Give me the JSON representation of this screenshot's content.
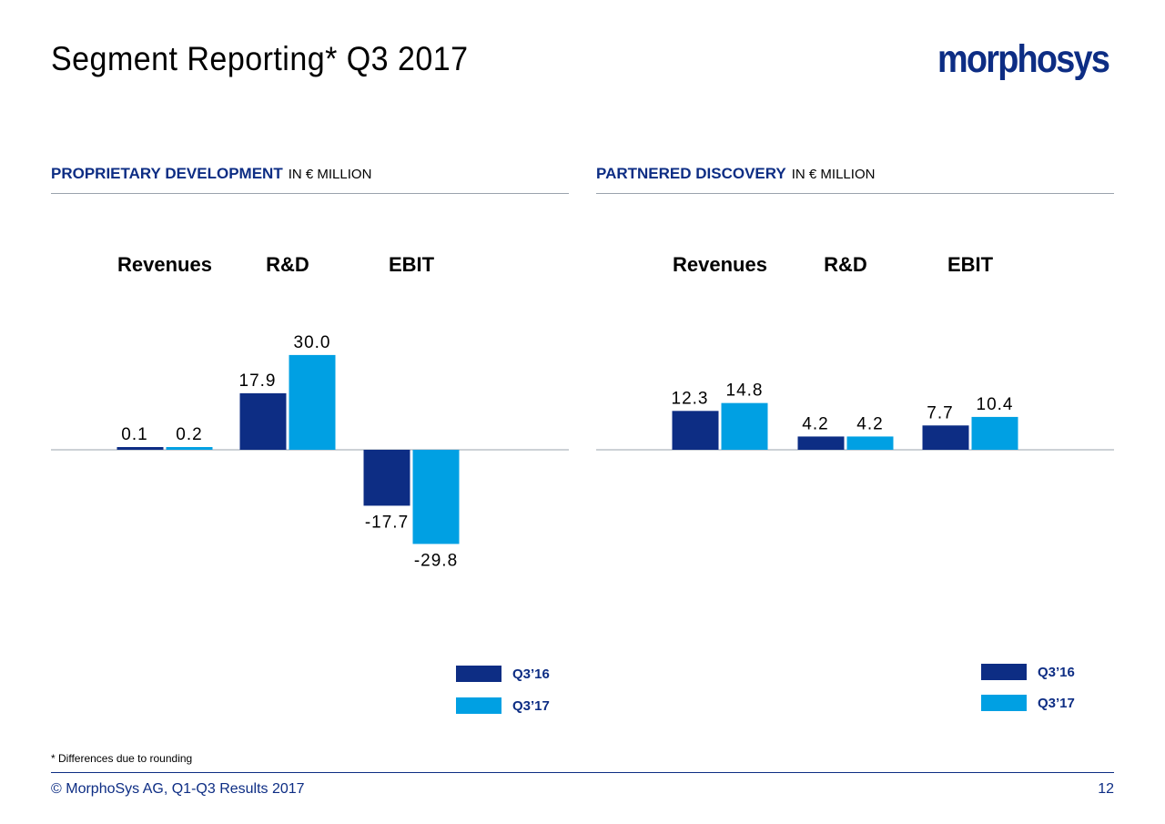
{
  "title": "Segment Reporting* Q3 2017",
  "logo_text": "morphosys",
  "colors": {
    "q3_16": "#0d2d84",
    "q3_17": "#00a0e3",
    "heading_blue": "#0d2d84"
  },
  "sections": [
    {
      "title": "PROPRIETARY DEVELOPMENT",
      "unit": "IN € MILLION"
    },
    {
      "title": "PARTNERED DISCOVERY",
      "unit": "IN € MILLION"
    }
  ],
  "legend": {
    "q3_16": "Q3’16",
    "q3_17": "Q3’17"
  },
  "footnote": "* Differences due to rounding",
  "footer": {
    "text": "© MorphoSys AG, Q1-Q3 Results 2017",
    "page": "12"
  },
  "chart_data": [
    {
      "type": "bar",
      "title": "PROPRIETARY DEVELOPMENT",
      "categories": [
        "Revenues",
        "R&D",
        "EBIT"
      ],
      "series": [
        {
          "name": "Q3’16",
          "values": [
            0.1,
            17.9,
            -17.7
          ],
          "labels": [
            "0.1",
            "17.9",
            "-17.7"
          ]
        },
        {
          "name": "Q3’17",
          "values": [
            0.2,
            30.0,
            -29.8
          ],
          "labels": [
            "0.2",
            "30.0",
            "-29.8"
          ]
        }
      ]
    },
    {
      "type": "bar",
      "title": "PARTNERED DISCOVERY",
      "categories": [
        "Revenues",
        "R&D",
        "EBIT"
      ],
      "series": [
        {
          "name": "Q3’16",
          "values": [
            12.3,
            4.2,
            7.7
          ],
          "labels": [
            "12.3",
            "4.2",
            "7.7"
          ]
        },
        {
          "name": "Q3’17",
          "values": [
            14.8,
            4.2,
            10.4
          ],
          "labels": [
            "14.8",
            "4.2",
            "10.4"
          ]
        }
      ]
    }
  ]
}
